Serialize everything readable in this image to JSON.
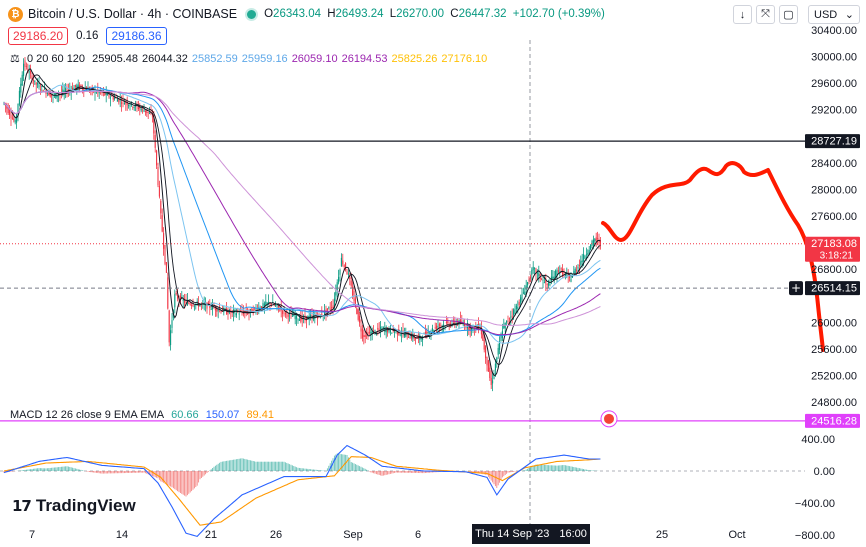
{
  "header": {
    "coin_icon": "bitcoin-icon",
    "symbol": "Bitcoin / U.S. Dollar · 4h · COINBASE",
    "o_key": "O",
    "o": "26343.04",
    "h_key": "H",
    "h": "26493.24",
    "l_key": "L",
    "l": "26270.00",
    "c_key": "C",
    "c": "26447.32",
    "change": "+102.70 (+0.39%)",
    "sell_price": "29186.20",
    "spread": "0.16",
    "buy_price": "29186.36",
    "currency": "USD",
    "currency_arrow": "⌄",
    "tools": [
      "↓",
      "⤧",
      "▢"
    ]
  },
  "ma_legend": {
    "label": "0 20 60 120",
    "values": [
      {
        "text": "25905.48",
        "color": "#131722"
      },
      {
        "text": "26044.32",
        "color": "#131722"
      },
      {
        "text": "25852.59",
        "color": "#5fa8e8"
      },
      {
        "text": "25959.16",
        "color": "#5fa8e8"
      },
      {
        "text": "26059.10",
        "color": "#9c27b0"
      },
      {
        "text": "26194.53",
        "color": "#9c27b0"
      },
      {
        "text": "25825.26",
        "color": "#ffc107"
      },
      {
        "text": "27176.10",
        "color": "#ffc107"
      }
    ]
  },
  "macd_legend": {
    "label": "MACD 12 26 close 9 EMA EMA",
    "v1": "60.66",
    "v1_color": "#26a69a",
    "v2": "150.07",
    "v2_color": "#2962ff",
    "v3": "89.41",
    "v3_color": "#ff9800"
  },
  "price_axis": [
    "30400.00",
    "30000.00",
    "29600.00",
    "29200.00",
    "28400.00",
    "28000.00",
    "27600.00",
    "26800.00",
    "26000.00",
    "25600.00",
    "25200.00",
    "24800.00"
  ],
  "macd_axis": [
    "400.00",
    "0.00",
    "−400.00",
    "−800.00"
  ],
  "time_axis": [
    "7",
    "14",
    "21",
    "26",
    "Sep",
    "6",
    "25",
    "Oct"
  ],
  "price_labels": [
    {
      "text": "28727.19",
      "bg": "#131722",
      "fg": "#ffffff"
    },
    {
      "text": "27183.08",
      "bg": "#f23645",
      "fg": "#ffffff",
      "sub": "3:18:21"
    },
    {
      "text": "26514.15",
      "bg": "#131722",
      "fg": "#ffffff"
    },
    {
      "text": "24516.28",
      "bg": "#e040fb",
      "fg": "#ffffff"
    }
  ],
  "time_tag": {
    "date": "Thu 14 Sep '23",
    "time": "16:00"
  },
  "logo": {
    "mark": "17",
    "text": "TradingView"
  },
  "colors": {
    "up": "#089981",
    "down": "#f23645",
    "drawing": "#ff1a00",
    "hline": "#131722",
    "support": "#e040fb",
    "ma_black": "#131722",
    "ma_lightblue": "#7cc4f0",
    "ma_blue": "#2196f3",
    "ma_purple": "#9c27b0",
    "ma_pink": "#ce93d8",
    "macd": "#2962ff",
    "signal": "#ff9800"
  },
  "chart_data": {
    "type": "candlestick",
    "timeframe": "4h",
    "ylim": [
      24700,
      30500
    ],
    "x_ticks": [
      "7",
      "14",
      "21",
      "26",
      "Sep",
      "6",
      "25",
      "Oct"
    ],
    "hlines": [
      28727.19,
      26514.15,
      24516.28
    ],
    "current_price": 27183.08,
    "waypoints": [
      [
        0,
        29300
      ],
      [
        8,
        29000
      ],
      [
        14,
        29900
      ],
      [
        22,
        29600
      ],
      [
        35,
        29400
      ],
      [
        52,
        29550
      ],
      [
        70,
        29450
      ],
      [
        88,
        29300
      ],
      [
        100,
        29200
      ],
      [
        106,
        29100
      ],
      [
        108,
        28600
      ],
      [
        112,
        27600
      ],
      [
        116,
        26700
      ],
      [
        118,
        25700
      ],
      [
        122,
        26400
      ],
      [
        130,
        26300
      ],
      [
        145,
        26250
      ],
      [
        160,
        26150
      ],
      [
        175,
        26150
      ],
      [
        190,
        26300
      ],
      [
        200,
        26150
      ],
      [
        212,
        26050
      ],
      [
        226,
        26100
      ],
      [
        235,
        26250
      ],
      [
        241,
        26950
      ],
      [
        246,
        26700
      ],
      [
        256,
        25800
      ],
      [
        270,
        25900
      ],
      [
        282,
        25850
      ],
      [
        296,
        25750
      ],
      [
        310,
        25950
      ],
      [
        325,
        26000
      ],
      [
        334,
        25900
      ],
      [
        340,
        25950
      ],
      [
        348,
        25050
      ],
      [
        356,
        25900
      ],
      [
        368,
        26300
      ],
      [
        378,
        26800
      ],
      [
        388,
        26550
      ],
      [
        396,
        26800
      ],
      [
        404,
        26650
      ],
      [
        416,
        27050
      ],
      [
        422,
        27250
      ],
      [
        426,
        27200
      ]
    ],
    "candles_total": 427,
    "macd_range": [
      -900,
      450
    ],
    "macd_waypoints": [
      [
        0,
        -20
      ],
      [
        25,
        120
      ],
      [
        45,
        170
      ],
      [
        70,
        70
      ],
      [
        100,
        30
      ],
      [
        110,
        -150
      ],
      [
        120,
        -450
      ],
      [
        130,
        -780
      ],
      [
        138,
        -820
      ],
      [
        150,
        -600
      ],
      [
        170,
        -300
      ],
      [
        200,
        -70
      ],
      [
        230,
        -70
      ],
      [
        238,
        200
      ],
      [
        245,
        320
      ],
      [
        258,
        200
      ],
      [
        270,
        60
      ],
      [
        300,
        0
      ],
      [
        330,
        -10
      ],
      [
        345,
        -80
      ],
      [
        352,
        -300
      ],
      [
        360,
        -100
      ],
      [
        380,
        150
      ],
      [
        400,
        200
      ],
      [
        418,
        150
      ],
      [
        426,
        150
      ]
    ],
    "signal_waypoints": [
      [
        0,
        0
      ],
      [
        30,
        100
      ],
      [
        60,
        120
      ],
      [
        100,
        50
      ],
      [
        112,
        -80
      ],
      [
        125,
        -350
      ],
      [
        140,
        -680
      ],
      [
        155,
        -640
      ],
      [
        180,
        -340
      ],
      [
        210,
        -110
      ],
      [
        236,
        -60
      ],
      [
        248,
        180
      ],
      [
        262,
        170
      ],
      [
        280,
        60
      ],
      [
        310,
        10
      ],
      [
        345,
        -30
      ],
      [
        356,
        -120
      ],
      [
        372,
        40
      ],
      [
        395,
        120
      ],
      [
        418,
        140
      ],
      [
        426,
        150
      ]
    ]
  }
}
